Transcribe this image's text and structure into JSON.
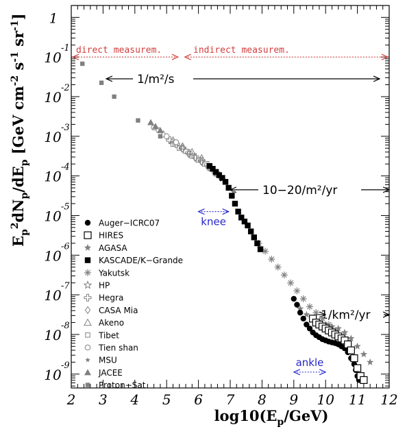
{
  "chart_data": {
    "type": "scatter",
    "xlabel": "log10(E",
    "xlabel_sub": "p",
    "xlabel_end": "/GeV)",
    "ylabel": "E",
    "ylabel_parts": [
      "E",
      "p",
      "2",
      "dN",
      "p",
      "/dE",
      "p",
      " [GeV cm",
      "-2",
      " s",
      "-1",
      " sr",
      "-1",
      "]"
    ],
    "xlim": [
      2,
      12
    ],
    "ylim": [
      -9.35,
      0.3
    ],
    "y_log": true,
    "x_ticks": [
      2,
      3,
      4,
      5,
      6,
      7,
      8,
      9,
      10,
      11,
      12
    ],
    "x_tick_labels": [
      "2",
      "3",
      "4",
      "5",
      "6",
      "7",
      "8",
      "9",
      "10",
      "11",
      "12"
    ],
    "y_ticks": [
      0,
      -1,
      -2,
      -3,
      -4,
      -5,
      -6,
      -7,
      -8,
      -9
    ],
    "y_tick_base": "10",
    "y_tick_top": "1",
    "y_tick_exponents": [
      "",
      "-1",
      "-2",
      "-3",
      "-4",
      "-5",
      "-6",
      "-7",
      "-8",
      "-9"
    ],
    "grid": false,
    "legend_position": "bottom-left",
    "series": [
      {
        "name": "Auger−ICRC07",
        "marker": "circle-filled",
        "color": "#000000",
        "x": [
          9.0,
          9.1,
          9.2,
          9.3,
          9.4,
          9.5,
          9.6,
          9.7,
          9.8,
          9.9,
          10.0,
          10.1,
          10.2,
          10.3,
          10.4,
          10.5,
          10.6,
          10.7,
          10.8,
          10.9,
          10.95,
          11.0,
          11.05
        ],
        "y": [
          -7.1,
          -7.25,
          -7.45,
          -7.6,
          -7.75,
          -7.85,
          -7.95,
          -8.02,
          -8.07,
          -8.12,
          -8.15,
          -8.18,
          -8.2,
          -8.22,
          -8.25,
          -8.3,
          -8.35,
          -8.45,
          -8.6,
          -8.75,
          -8.9,
          -9.05,
          -9.15
        ]
      },
      {
        "name": "HIRES",
        "marker": "square-open",
        "color": "#000000",
        "x": [
          9.6,
          9.7,
          9.8,
          9.9,
          10.0,
          10.1,
          10.2,
          10.3,
          10.4,
          10.5,
          10.6,
          10.7,
          10.8,
          10.9,
          11.0,
          11.1,
          11.2
        ],
        "y": [
          -7.6,
          -7.7,
          -7.75,
          -7.8,
          -7.85,
          -7.9,
          -7.95,
          -8.0,
          -8.05,
          -8.1,
          -8.15,
          -8.25,
          -8.4,
          -8.6,
          -8.85,
          -9.05,
          -9.15
        ]
      },
      {
        "name": "AGASA",
        "marker": "star-filled",
        "color": "#808080",
        "x": [
          9.2,
          9.4,
          9.6,
          9.8,
          10.0,
          10.2,
          10.4,
          10.6,
          10.8,
          11.0,
          11.2,
          11.4
        ],
        "y": [
          -7.35,
          -7.5,
          -7.6,
          -7.7,
          -7.75,
          -7.8,
          -7.85,
          -7.95,
          -8.1,
          -8.3,
          -8.5,
          -8.7
        ]
      },
      {
        "name": "KASCADE/K−Grande",
        "marker": "square-filled",
        "color": "#000000",
        "x": [
          6.35,
          6.45,
          6.55,
          6.65,
          6.75,
          6.85,
          6.95,
          7.05,
          7.15,
          7.25,
          7.35,
          7.45,
          7.55,
          7.65,
          7.75,
          7.85,
          7.95
        ],
        "y": [
          -3.75,
          -3.82,
          -3.9,
          -3.98,
          -4.05,
          -4.15,
          -4.3,
          -4.5,
          -4.7,
          -4.9,
          -5.05,
          -5.15,
          -5.25,
          -5.4,
          -5.55,
          -5.7,
          -5.85
        ]
      },
      {
        "name": "Yakutsk",
        "marker": "asterisk",
        "color": "#808080",
        "x": [
          7.9,
          8.1,
          8.3,
          8.5,
          8.7,
          8.9,
          9.1,
          9.3,
          9.5,
          9.7,
          9.9,
          10.1,
          10.3,
          10.5,
          10.7
        ],
        "y": [
          -5.7,
          -5.9,
          -6.1,
          -6.3,
          -6.5,
          -6.7,
          -6.9,
          -7.1,
          -7.3,
          -7.45,
          -7.6,
          -7.75,
          -7.9,
          -8.05,
          -8.2
        ]
      },
      {
        "name": "HP",
        "marker": "star-open",
        "color": "#808080",
        "x": [],
        "y": []
      },
      {
        "name": "Hegra",
        "marker": "cross-open",
        "color": "#808080",
        "x": [
          5.1,
          5.3,
          5.5,
          5.7,
          5.9,
          6.1,
          6.3
        ],
        "y": [
          -3.1,
          -3.2,
          -3.3,
          -3.42,
          -3.52,
          -3.62,
          -3.72
        ]
      },
      {
        "name": "CASA Mia",
        "marker": "diamond-open",
        "color": "#808080",
        "x": [
          5.5,
          5.7,
          5.9,
          6.1,
          6.3,
          6.5,
          6.7
        ],
        "y": [
          -3.32,
          -3.45,
          -3.55,
          -3.65,
          -3.78,
          -3.92,
          -4.05
        ]
      },
      {
        "name": "Akeno",
        "marker": "triangle-open",
        "color": "#808080",
        "x": [
          4.9,
          5.2,
          5.5,
          5.8,
          6.1
        ],
        "y": [
          -2.95,
          -3.1,
          -3.25,
          -3.4,
          -3.55
        ]
      },
      {
        "name": "Tibet",
        "marker": "square-open-small",
        "color": "#808080",
        "x": [
          5.2,
          5.4,
          5.6,
          5.8,
          6.0,
          6.2,
          6.4,
          6.6
        ],
        "y": [
          -3.2,
          -3.3,
          -3.38,
          -3.5,
          -3.6,
          -3.7,
          -3.82,
          -3.95
        ]
      },
      {
        "name": "Tien shan",
        "marker": "circle-open",
        "color": "#808080",
        "x": [
          4.6,
          4.75,
          5.0,
          5.3
        ],
        "y": [
          -2.78,
          -2.85,
          -3.0,
          -3.15
        ]
      },
      {
        "name": "MSU",
        "marker": "star-small",
        "color": "#808080",
        "x": [
          6.5,
          6.8,
          7.1
        ],
        "y": [
          -3.95,
          -4.1,
          -4.4
        ]
      },
      {
        "name": "JACEE",
        "marker": "triangle-filled",
        "color": "#808080",
        "x": [
          4.5,
          4.65,
          4.8
        ],
        "y": [
          -2.65,
          -2.75,
          -2.85
        ]
      },
      {
        "name": "Proton−Sat",
        "marker": "square-filled-small",
        "color": "#808080",
        "x": [
          2.35,
          2.95,
          3.35,
          4.1,
          4.8
        ],
        "y": [
          -1.17,
          -1.65,
          -2.0,
          -2.6,
          -3.0
        ]
      }
    ],
    "annotations": {
      "direct_label": "direct measurem.",
      "indirect_label": "indirect measurem.",
      "flux1_label": "1/m²/s",
      "flux2_label": "10−20/m²/yr",
      "flux3_label": "1/km²/yr",
      "knee_label": "knee",
      "ankle_label": "ankle",
      "divider_x": 5.4,
      "direct_y": -1.0,
      "flux1": {
        "x_start": 3.1,
        "x_end": 11.7,
        "y": -1.55
      },
      "flux2": {
        "x_start": 7.0,
        "x_end": 12.0,
        "y": -4.35
      },
      "flux3": {
        "x_start": 10.0,
        "x_end": 12.0,
        "y": -7.5
      },
      "knee": {
        "x_start": 6.0,
        "x_end": 6.95,
        "y": -4.9
      },
      "ankle": {
        "x_start": 9.0,
        "x_end": 10.0,
        "y": -8.95
      }
    },
    "colors": {
      "axis": "#000000",
      "direct": "#d23c3c",
      "knee": "#2626c8",
      "grey_series": "#808080"
    }
  }
}
